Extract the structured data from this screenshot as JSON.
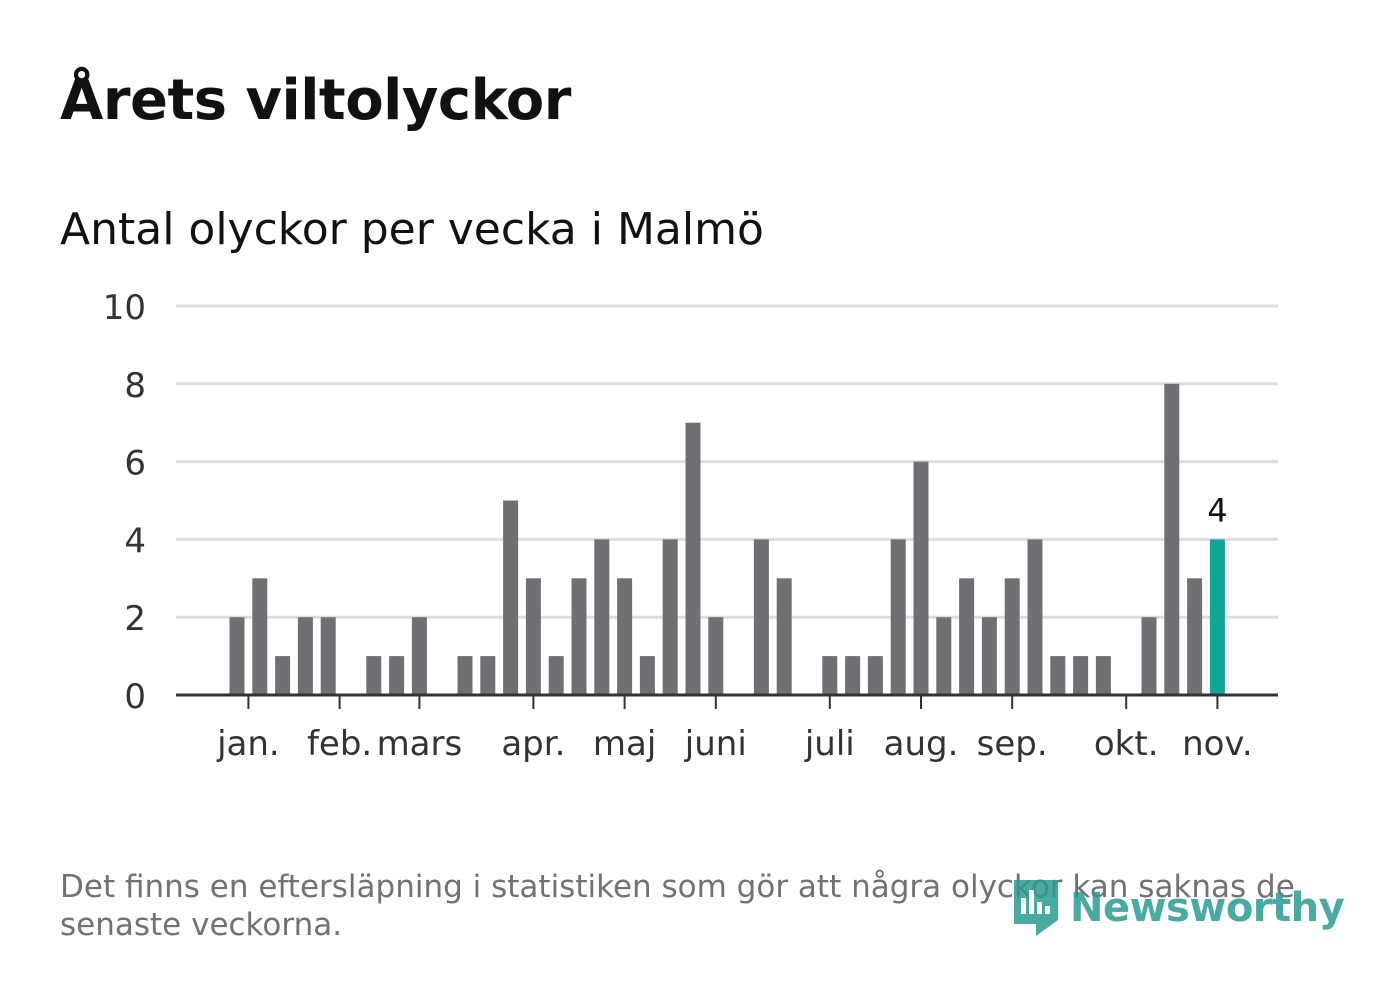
{
  "title": "Årets viltolyckor",
  "subtitle": "Antal olyckor per vecka i Malmö",
  "footnote": "Det finns en eftersläpning i statistiken som gör att några olyckor kan saknas de senaste veckorna.",
  "logo": {
    "text": "Newsworthy",
    "icon": "newsworthy-logo-icon"
  },
  "colors": {
    "bar": "#707074",
    "highlight": "#11a497",
    "grid": "#dddddd",
    "axis": "#333333",
    "logo": "#2a9c92"
  },
  "chart_data": {
    "type": "bar",
    "title": "Årets viltolyckor",
    "subtitle": "Antal olyckor per vecka i Malmö",
    "xlabel": "",
    "ylabel": "",
    "ylim": [
      0,
      10
    ],
    "yticks": [
      0,
      2,
      4,
      6,
      8,
      10
    ],
    "grid": true,
    "weeks": [
      1,
      2,
      3,
      4,
      5,
      6,
      7,
      8,
      9,
      10,
      11,
      12,
      13,
      14,
      15,
      16,
      17,
      18,
      19,
      20,
      21,
      22,
      23,
      24,
      25,
      26,
      27,
      28,
      29,
      30,
      31,
      32,
      33,
      34,
      35,
      36,
      37,
      38,
      39,
      40,
      41,
      42,
      43,
      44
    ],
    "values": [
      2,
      3,
      1,
      2,
      2,
      0,
      1,
      1,
      2,
      0,
      1,
      1,
      5,
      3,
      1,
      3,
      4,
      3,
      1,
      4,
      7,
      2,
      0,
      4,
      3,
      0,
      1,
      1,
      1,
      4,
      6,
      2,
      3,
      2,
      3,
      4,
      1,
      1,
      1,
      0,
      2,
      8,
      3,
      4
    ],
    "highlight_index": 43,
    "highlight_label": "4",
    "month_labels": [
      {
        "label": "jan.",
        "week": 1.5
      },
      {
        "label": "feb.",
        "week": 5.5
      },
      {
        "label": "mars",
        "week": 9.0
      },
      {
        "label": "apr.",
        "week": 14.0
      },
      {
        "label": "maj",
        "week": 18.0
      },
      {
        "label": "juni",
        "week": 22.0
      },
      {
        "label": "juli",
        "week": 27.0
      },
      {
        "label": "aug.",
        "week": 31.0
      },
      {
        "label": "sep.",
        "week": 35.0
      },
      {
        "label": "okt.",
        "week": 40.0
      },
      {
        "label": "nov.",
        "week": 44.0
      }
    ]
  }
}
